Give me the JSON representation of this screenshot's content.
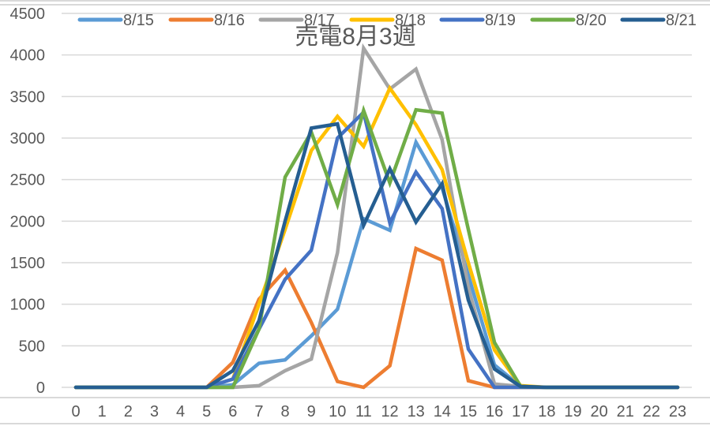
{
  "chart_data": {
    "type": "line",
    "title": "売電8月3週",
    "xlabel": "",
    "ylabel": "",
    "x": [
      0,
      1,
      2,
      3,
      4,
      5,
      6,
      7,
      8,
      9,
      10,
      11,
      12,
      13,
      14,
      15,
      16,
      17,
      18,
      19,
      20,
      21,
      22,
      23
    ],
    "categories": [
      "0",
      "1",
      "2",
      "3",
      "4",
      "5",
      "6",
      "7",
      "8",
      "9",
      "10",
      "11",
      "12",
      "13",
      "14",
      "15",
      "16",
      "17",
      "18",
      "19",
      "20",
      "21",
      "22",
      "23"
    ],
    "ylim": [
      0,
      4500
    ],
    "yticks": [
      0,
      500,
      1000,
      1500,
      2000,
      2500,
      3000,
      3500,
      4000,
      4500
    ],
    "grid": true,
    "legend_position": "top",
    "series": [
      {
        "name": "8/15",
        "color": "#5B9BD5",
        "values": [
          0,
          0,
          0,
          0,
          0,
          0,
          30,
          290,
          330,
          620,
          940,
          2030,
          1890,
          2950,
          2400,
          1350,
          270,
          10,
          0,
          0,
          0,
          0,
          0,
          0
        ]
      },
      {
        "name": "8/16",
        "color": "#ED7D31",
        "values": [
          0,
          0,
          0,
          0,
          0,
          0,
          300,
          1060,
          1410,
          780,
          70,
          0,
          260,
          1670,
          1530,
          80,
          0,
          0,
          0,
          0,
          0,
          0,
          0,
          0
        ]
      },
      {
        "name": "8/17",
        "color": "#A5A5A5",
        "values": [
          0,
          0,
          0,
          0,
          0,
          0,
          0,
          20,
          200,
          340,
          1620,
          4080,
          3590,
          3830,
          2980,
          1200,
          40,
          10,
          0,
          0,
          0,
          0,
          0,
          0
        ]
      },
      {
        "name": "8/18",
        "color": "#FFC000",
        "values": [
          0,
          0,
          0,
          0,
          0,
          0,
          100,
          1000,
          1900,
          2850,
          3260,
          2900,
          3600,
          3160,
          2620,
          1500,
          450,
          20,
          0,
          0,
          0,
          0,
          0,
          0
        ]
      },
      {
        "name": "8/19",
        "color": "#4472C4",
        "values": [
          0,
          0,
          0,
          0,
          0,
          0,
          100,
          700,
          1300,
          1650,
          3000,
          3310,
          1980,
          2590,
          2150,
          460,
          0,
          0,
          0,
          0,
          0,
          0,
          0,
          0
        ]
      },
      {
        "name": "8/20",
        "color": "#70AD47",
        "values": [
          0,
          0,
          0,
          0,
          0,
          0,
          0,
          700,
          2530,
          3070,
          2200,
          3330,
          2460,
          3340,
          3300,
          1900,
          540,
          10,
          0,
          0,
          0,
          0,
          0,
          0
        ]
      },
      {
        "name": "8/21",
        "color": "#255E91",
        "values": [
          0,
          0,
          0,
          0,
          0,
          0,
          200,
          800,
          2000,
          3120,
          3170,
          1950,
          2630,
          1990,
          2450,
          1050,
          220,
          10,
          0,
          0,
          0,
          0,
          0,
          0
        ]
      }
    ]
  },
  "layout_colors": {
    "gridline": "#d9d9d9",
    "text": "#595959"
  }
}
